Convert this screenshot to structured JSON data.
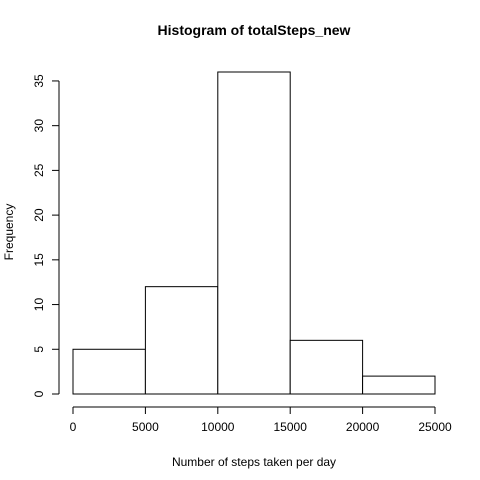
{
  "chart_data": {
    "type": "bar",
    "title": "Histogram of totalSteps_new",
    "xlabel": "Number of steps taken per day",
    "ylabel": "Frequency",
    "bins": [
      {
        "from": 0,
        "to": 5000,
        "count": 5
      },
      {
        "from": 5000,
        "to": 10000,
        "count": 12
      },
      {
        "from": 10000,
        "to": 15000,
        "count": 36
      },
      {
        "from": 15000,
        "to": 20000,
        "count": 6
      },
      {
        "from": 20000,
        "to": 25000,
        "count": 2
      }
    ],
    "xlim": [
      0,
      25000
    ],
    "ylim": [
      0,
      36
    ],
    "x_ticks": [
      0,
      5000,
      10000,
      15000,
      20000,
      25000
    ],
    "y_ticks": [
      0,
      5,
      10,
      15,
      20,
      25,
      30,
      35
    ],
    "grid": false,
    "bar_fill": "#ffffff",
    "bar_stroke": "#000000"
  }
}
